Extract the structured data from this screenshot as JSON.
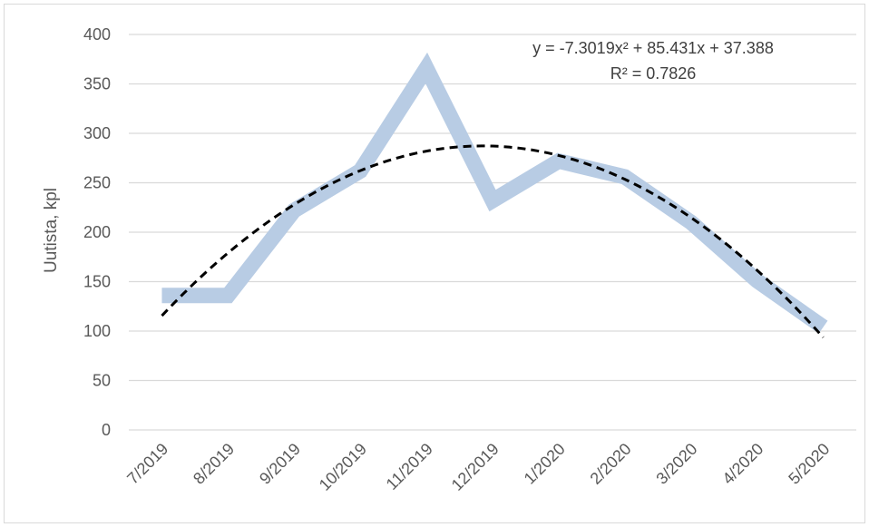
{
  "chart_data": {
    "type": "line",
    "categories": [
      "7/2019",
      "8/2019",
      "9/2019",
      "10/2019",
      "11/2019",
      "12/2019",
      "1/2020",
      "2/2020",
      "3/2020",
      "4/2020",
      "5/2020"
    ],
    "series": [
      {
        "values": [
          136,
          136,
          222,
          262,
          366,
          232,
          272,
          256,
          210,
          151,
          104
        ],
        "color": "#b8cce4",
        "style": "thick-solid"
      }
    ],
    "trendline": {
      "kind": "polynomial-2",
      "coefficients": {
        "a": -7.3019,
        "b": 85.431,
        "c": 37.388
      },
      "color": "#000000",
      "style": "dashed",
      "equation_text": "y = -7.3019x² + 85.431x + 37.388",
      "r2_text": "R² = 0.7826"
    },
    "title": "",
    "xlabel": "",
    "ylabel": "Uutista, kpl",
    "ylim": [
      0,
      400
    ],
    "yticks": [
      "0",
      "50",
      "100",
      "150",
      "200",
      "250",
      "300",
      "350",
      "400"
    ],
    "grid": true
  }
}
